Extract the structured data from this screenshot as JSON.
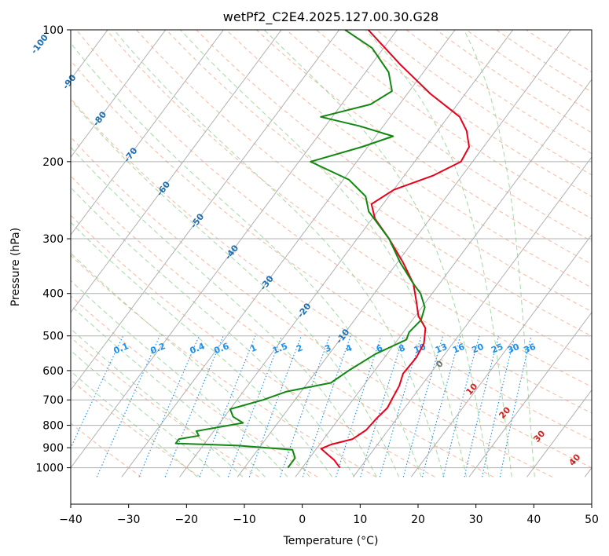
{
  "chart_data": {
    "type": "line",
    "title": "wetPf2_C2E4.2025.127.00.30.G28",
    "xlabel": "Temperature (°C)",
    "ylabel": "Pressure (hPa)",
    "xlim": [
      -40,
      50
    ],
    "ylim": [
      1050,
      100
    ],
    "y_scale": "log",
    "x_ticks": [
      -40,
      -30,
      -20,
      -10,
      0,
      10,
      20,
      30,
      40,
      50
    ],
    "x_tick_labels": [
      "−40",
      "−30",
      "−20",
      "−10",
      "0",
      "10",
      "20",
      "30",
      "40",
      "50"
    ],
    "y_ticks": [
      100,
      200,
      300,
      400,
      500,
      600,
      700,
      800,
      900,
      1000
    ],
    "y_tick_labels": [
      "100",
      "200",
      "300",
      "400",
      "500",
      "600",
      "700",
      "800",
      "900",
      "1000"
    ],
    "grid": true,
    "colors": {
      "temperature": "#e8001a",
      "dewpoint": "#118811",
      "isotherm": "#b0b0b0",
      "dry_adiabat": "#f5a080",
      "moist_adiabat": "#8fcf8f",
      "mixing_ratio": "#1f8fe0",
      "label_blue": "#1f6fb0",
      "label_red": "#d02020"
    },
    "series": [
      {
        "role": "temperature",
        "values": [
          {
            "p": 1000,
            "t": 6.5
          },
          {
            "p": 960,
            "t": 4.5
          },
          {
            "p": 930,
            "t": 2.5
          },
          {
            "p": 905,
            "t": 0.8
          },
          {
            "p": 885,
            "t": 2.0
          },
          {
            "p": 860,
            "t": 5.0
          },
          {
            "p": 820,
            "t": 6.2
          },
          {
            "p": 770,
            "t": 6.5
          },
          {
            "p": 730,
            "t": 7.0
          },
          {
            "p": 690,
            "t": 6.6
          },
          {
            "p": 650,
            "t": 6.2
          },
          {
            "p": 610,
            "t": 5.3
          },
          {
            "p": 560,
            "t": 5.5
          },
          {
            "p": 520,
            "t": 5.0
          },
          {
            "p": 480,
            "t": 3.3
          },
          {
            "p": 450,
            "t": 0.5
          },
          {
            "p": 420,
            "t": -1.5
          },
          {
            "p": 380,
            "t": -4.5
          },
          {
            "p": 340,
            "t": -9.0
          },
          {
            "p": 300,
            "t": -14.5
          },
          {
            "p": 270,
            "t": -19.5
          },
          {
            "p": 250,
            "t": -22.0
          },
          {
            "p": 232,
            "t": -20.0
          },
          {
            "p": 215,
            "t": -15.0
          },
          {
            "p": 200,
            "t": -12.0
          },
          {
            "p": 185,
            "t": -12.5
          },
          {
            "p": 170,
            "t": -15.0
          },
          {
            "p": 158,
            "t": -18.0
          },
          {
            "p": 140,
            "t": -26.0
          },
          {
            "p": 120,
            "t": -35.0
          },
          {
            "p": 100,
            "t": -45.0
          }
        ]
      },
      {
        "role": "dewpoint",
        "values": [
          {
            "p": 1000,
            "t": -2.5
          },
          {
            "p": 950,
            "t": -2.5
          },
          {
            "p": 910,
            "t": -4.0
          },
          {
            "p": 890,
            "t": -14.0
          },
          {
            "p": 880,
            "t": -25.0
          },
          {
            "p": 860,
            "t": -25.0
          },
          {
            "p": 845,
            "t": -22.0
          },
          {
            "p": 825,
            "t": -23.0
          },
          {
            "p": 790,
            "t": -16.0
          },
          {
            "p": 765,
            "t": -18.5
          },
          {
            "p": 735,
            "t": -20.0
          },
          {
            "p": 700,
            "t": -15.5
          },
          {
            "p": 670,
            "t": -12.5
          },
          {
            "p": 640,
            "t": -6.0
          },
          {
            "p": 600,
            "t": -4.5
          },
          {
            "p": 550,
            "t": -2.0
          },
          {
            "p": 510,
            "t": 1.5
          },
          {
            "p": 490,
            "t": 1.0
          },
          {
            "p": 460,
            "t": 1.5
          },
          {
            "p": 430,
            "t": 0.5
          },
          {
            "p": 400,
            "t": -2.0
          },
          {
            "p": 380,
            "t": -4.5
          },
          {
            "p": 340,
            "t": -9.5
          },
          {
            "p": 300,
            "t": -14.5
          },
          {
            "p": 260,
            "t": -21.5
          },
          {
            "p": 240,
            "t": -24.0
          },
          {
            "p": 220,
            "t": -29.0
          },
          {
            "p": 200,
            "t": -38.0
          },
          {
            "p": 185,
            "t": -31.0
          },
          {
            "p": 175,
            "t": -27.0
          },
          {
            "p": 166,
            "t": -34.0
          },
          {
            "p": 158,
            "t": -42.0
          },
          {
            "p": 148,
            "t": -35.0
          },
          {
            "p": 138,
            "t": -33.0
          },
          {
            "p": 125,
            "t": -36.0
          },
          {
            "p": 110,
            "t": -42.0
          },
          {
            "p": 100,
            "t": -49.0
          }
        ]
      }
    ],
    "isotherm_labels": [
      "-100",
      "-90",
      "-80",
      "-70",
      "-60",
      "-50",
      "-40",
      "-30",
      "-20",
      "-10"
    ],
    "mixing_ratio_labels": [
      "0.1",
      "0.2",
      "0.4",
      "0.6",
      "1",
      "1.5",
      "2",
      "3",
      "4",
      "6",
      "8",
      "10",
      "13",
      "16",
      "20",
      "25",
      "30",
      "36"
    ],
    "moist_adiabat_labels": [
      "0",
      "10",
      "20",
      "30",
      "40"
    ]
  }
}
